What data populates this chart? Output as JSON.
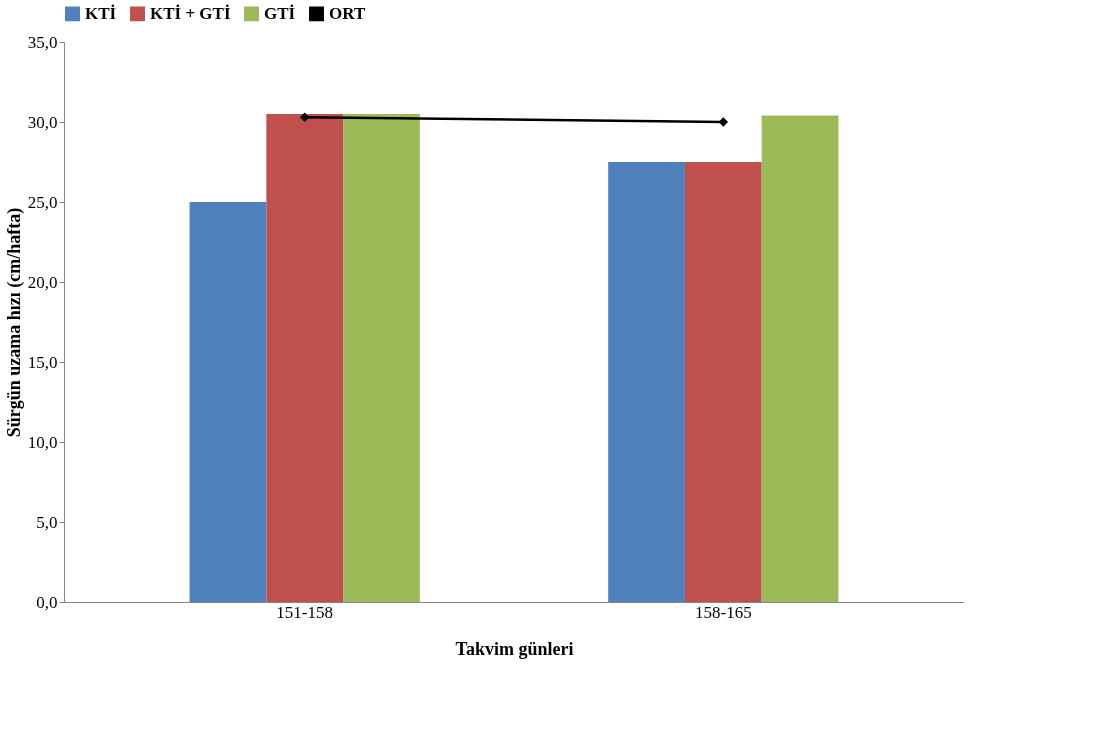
{
  "chart_data": {
    "type": "bar",
    "xlabel": "Takvim günleri",
    "ylabel": "Sürgün uzama hızı (cm/hafta)",
    "categories": [
      "151-158",
      "158-165"
    ],
    "series": [
      {
        "name": "KTİ",
        "color": "#4f81bd",
        "values": [
          25.0,
          27.5
        ]
      },
      {
        "name": "KTİ + GTİ",
        "color": "#c0504d",
        "values": [
          30.5,
          27.5
        ]
      },
      {
        "name": "GTİ",
        "color": "#9bbb59",
        "values": [
          30.5,
          30.4
        ]
      },
      {
        "name": "ORT",
        "color": "#000000",
        "type": "line",
        "marker": "diamond",
        "values": [
          30.3,
          30.0
        ]
      }
    ],
    "ylim": [
      0,
      35
    ],
    "yticks": [
      {
        "value": 0,
        "label": "0,0"
      },
      {
        "value": 5,
        "label": "5,0"
      },
      {
        "value": 10,
        "label": "10,0"
      },
      {
        "value": 15,
        "label": "15,0"
      },
      {
        "value": 20,
        "label": "20,0"
      },
      {
        "value": 25,
        "label": "25,0"
      },
      {
        "value": 30,
        "label": "30,0"
      },
      {
        "value": 35,
        "label": "35,0"
      }
    ],
    "grid": false,
    "legend": "top"
  }
}
